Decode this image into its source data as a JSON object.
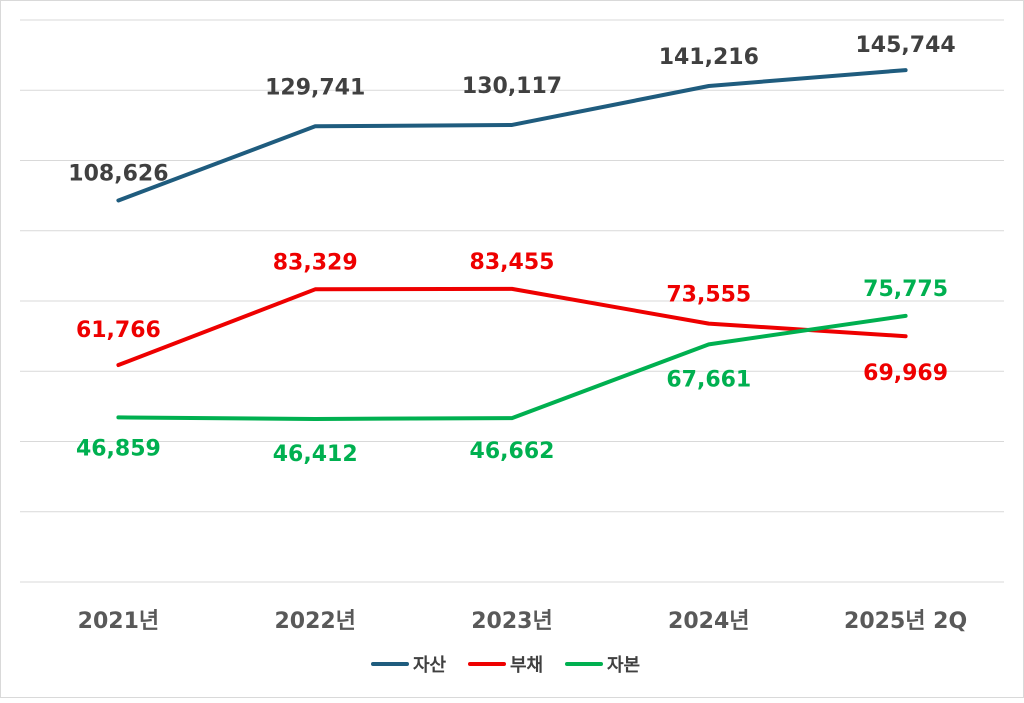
{
  "chart_data": {
    "type": "line",
    "categories": [
      "2021년",
      "2022년",
      "2023년",
      "2024년",
      "2025년 2Q"
    ],
    "series": [
      {
        "name": "자산",
        "color": "#1f5c7e",
        "label_color": "#404040",
        "values": [
          108626,
          129741,
          130117,
          141216,
          145744
        ],
        "labels": [
          "108,626",
          "129,741",
          "130,117",
          "141,216",
          "145,744"
        ]
      },
      {
        "name": "부채",
        "color": "#ee0000",
        "label_color": "#ee0000",
        "values": [
          61766,
          83329,
          83455,
          73555,
          69969
        ],
        "labels": [
          "61,766",
          "83,329",
          "83,455",
          "73,555",
          "69,969"
        ]
      },
      {
        "name": "자본",
        "color": "#00b050",
        "label_color": "#00b050",
        "values": [
          46859,
          46412,
          46662,
          67661,
          75775
        ],
        "labels": [
          "46,859",
          "46,412",
          "46,662",
          "67,661",
          "75,775"
        ]
      }
    ],
    "ylim": [
      0,
      160000
    ],
    "y_tick_step": 20000,
    "grid": true,
    "legend": "bottom",
    "title": "",
    "xlabel": "",
    "ylabel": ""
  }
}
